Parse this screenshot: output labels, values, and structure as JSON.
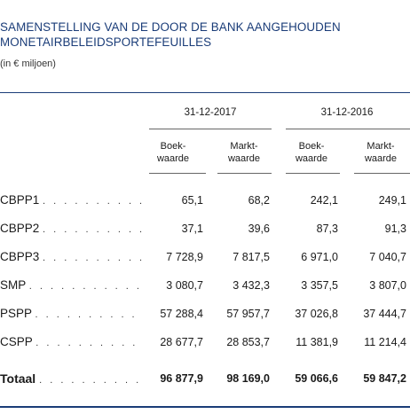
{
  "title_line1": "SAMENSTELLING VAN DE DOOR DE BANK AANGEHOUDEN",
  "title_line2": "MONETAIRBELEIDSPORTEFEUILLES",
  "subtitle": "(in € miljoen)",
  "dates": [
    "31-12-2017",
    "31-12-2016"
  ],
  "column_headers": [
    {
      "line1": "Boek-",
      "line2": "waarde"
    },
    {
      "line1": "Markt-",
      "line2": "waarde"
    },
    {
      "line1": "Boek-",
      "line2": "waarde"
    },
    {
      "line1": "Markt-",
      "line2": "waarde"
    }
  ],
  "rows": [
    {
      "label": "CBPP1",
      "values": [
        "65,1",
        "68,2",
        "242,1",
        "249,1"
      ]
    },
    {
      "label": "CBPP2",
      "values": [
        "37,1",
        "39,6",
        "87,3",
        "91,3"
      ]
    },
    {
      "label": "CBPP3",
      "values": [
        "7 728,9",
        "7 817,5",
        "6 971,0",
        "7 040,7"
      ]
    },
    {
      "label": "SMP",
      "values": [
        "3 080,7",
        "3 432,3",
        "3 357,5",
        "3 807,0"
      ]
    },
    {
      "label": "PSPP",
      "values": [
        "57 288,4",
        "57 957,7",
        "37 026,8",
        "37 444,7"
      ]
    },
    {
      "label": "CSPP",
      "values": [
        "28 677,7",
        "28 853,7",
        "11 381,9",
        "11 214,4"
      ]
    }
  ],
  "total": {
    "label": "Totaal",
    "values": [
      "96 877,9",
      "98 169,0",
      "59 066,6",
      "59 847,2"
    ]
  },
  "dot_leader": ". . . . . . . . . . . . .",
  "colors": {
    "title": "#1a3c78",
    "rule": "#1a3c78"
  }
}
